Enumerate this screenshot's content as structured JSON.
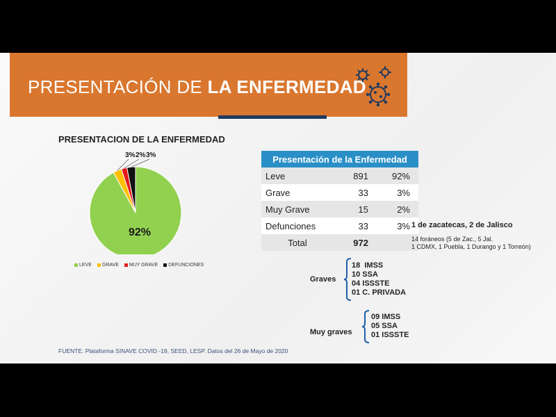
{
  "banner": {
    "title_light": "PRESENTACIÓN DE",
    "title_bold": "LA ENFERMEDAD",
    "color": "#d9772f",
    "icon": "virus-icon"
  },
  "chart_data": {
    "type": "pie",
    "title": "PRESENTACION DE LA ENFERMEDAD",
    "categories": [
      "LEVE",
      "GRAVE",
      "MUY GRAVE",
      "DEFUNCIONES"
    ],
    "values": [
      92,
      3,
      2,
      3
    ],
    "labels": [
      "92%",
      "3%",
      "2%",
      "3%"
    ],
    "colors": [
      "#92d050",
      "#ffc000",
      "#e31a1c",
      "#111111"
    ],
    "legend_position": "bottom"
  },
  "table": {
    "header": "Presentación de la Enfermedad",
    "rows": [
      {
        "label": "Leve",
        "count": "891",
        "pct": "92%"
      },
      {
        "label": "Grave",
        "count": "33",
        "pct": "3%"
      },
      {
        "label": "Muy Grave",
        "count": "15",
        "pct": "2%"
      },
      {
        "label": "Defunciones",
        "count": "33",
        "pct": "3%"
      }
    ],
    "total_label": "Total",
    "total_value": "972"
  },
  "note": {
    "title": "1 de zacatecas, 2 de Jalisco",
    "line1": "14 foráneos (5 de Zac., 5 Jal.",
    "line2": "1 CDMX, 1 Puebla, 1 Durango y 1 Torreón)"
  },
  "graves": {
    "label": "Graves",
    "items": [
      "18  IMSS",
      "10 SSA",
      "04 ISSSTE",
      "01 C. PRIVADA"
    ]
  },
  "muy_graves": {
    "label": "Muy graves",
    "items": [
      "09 IMSS",
      "05 SSA",
      "01 ISSSTE"
    ]
  },
  "source": "FUENTE. Plataforma SINAVE COVID -19, SEED, LESP. Datos del 26 de Mayo de 2020"
}
